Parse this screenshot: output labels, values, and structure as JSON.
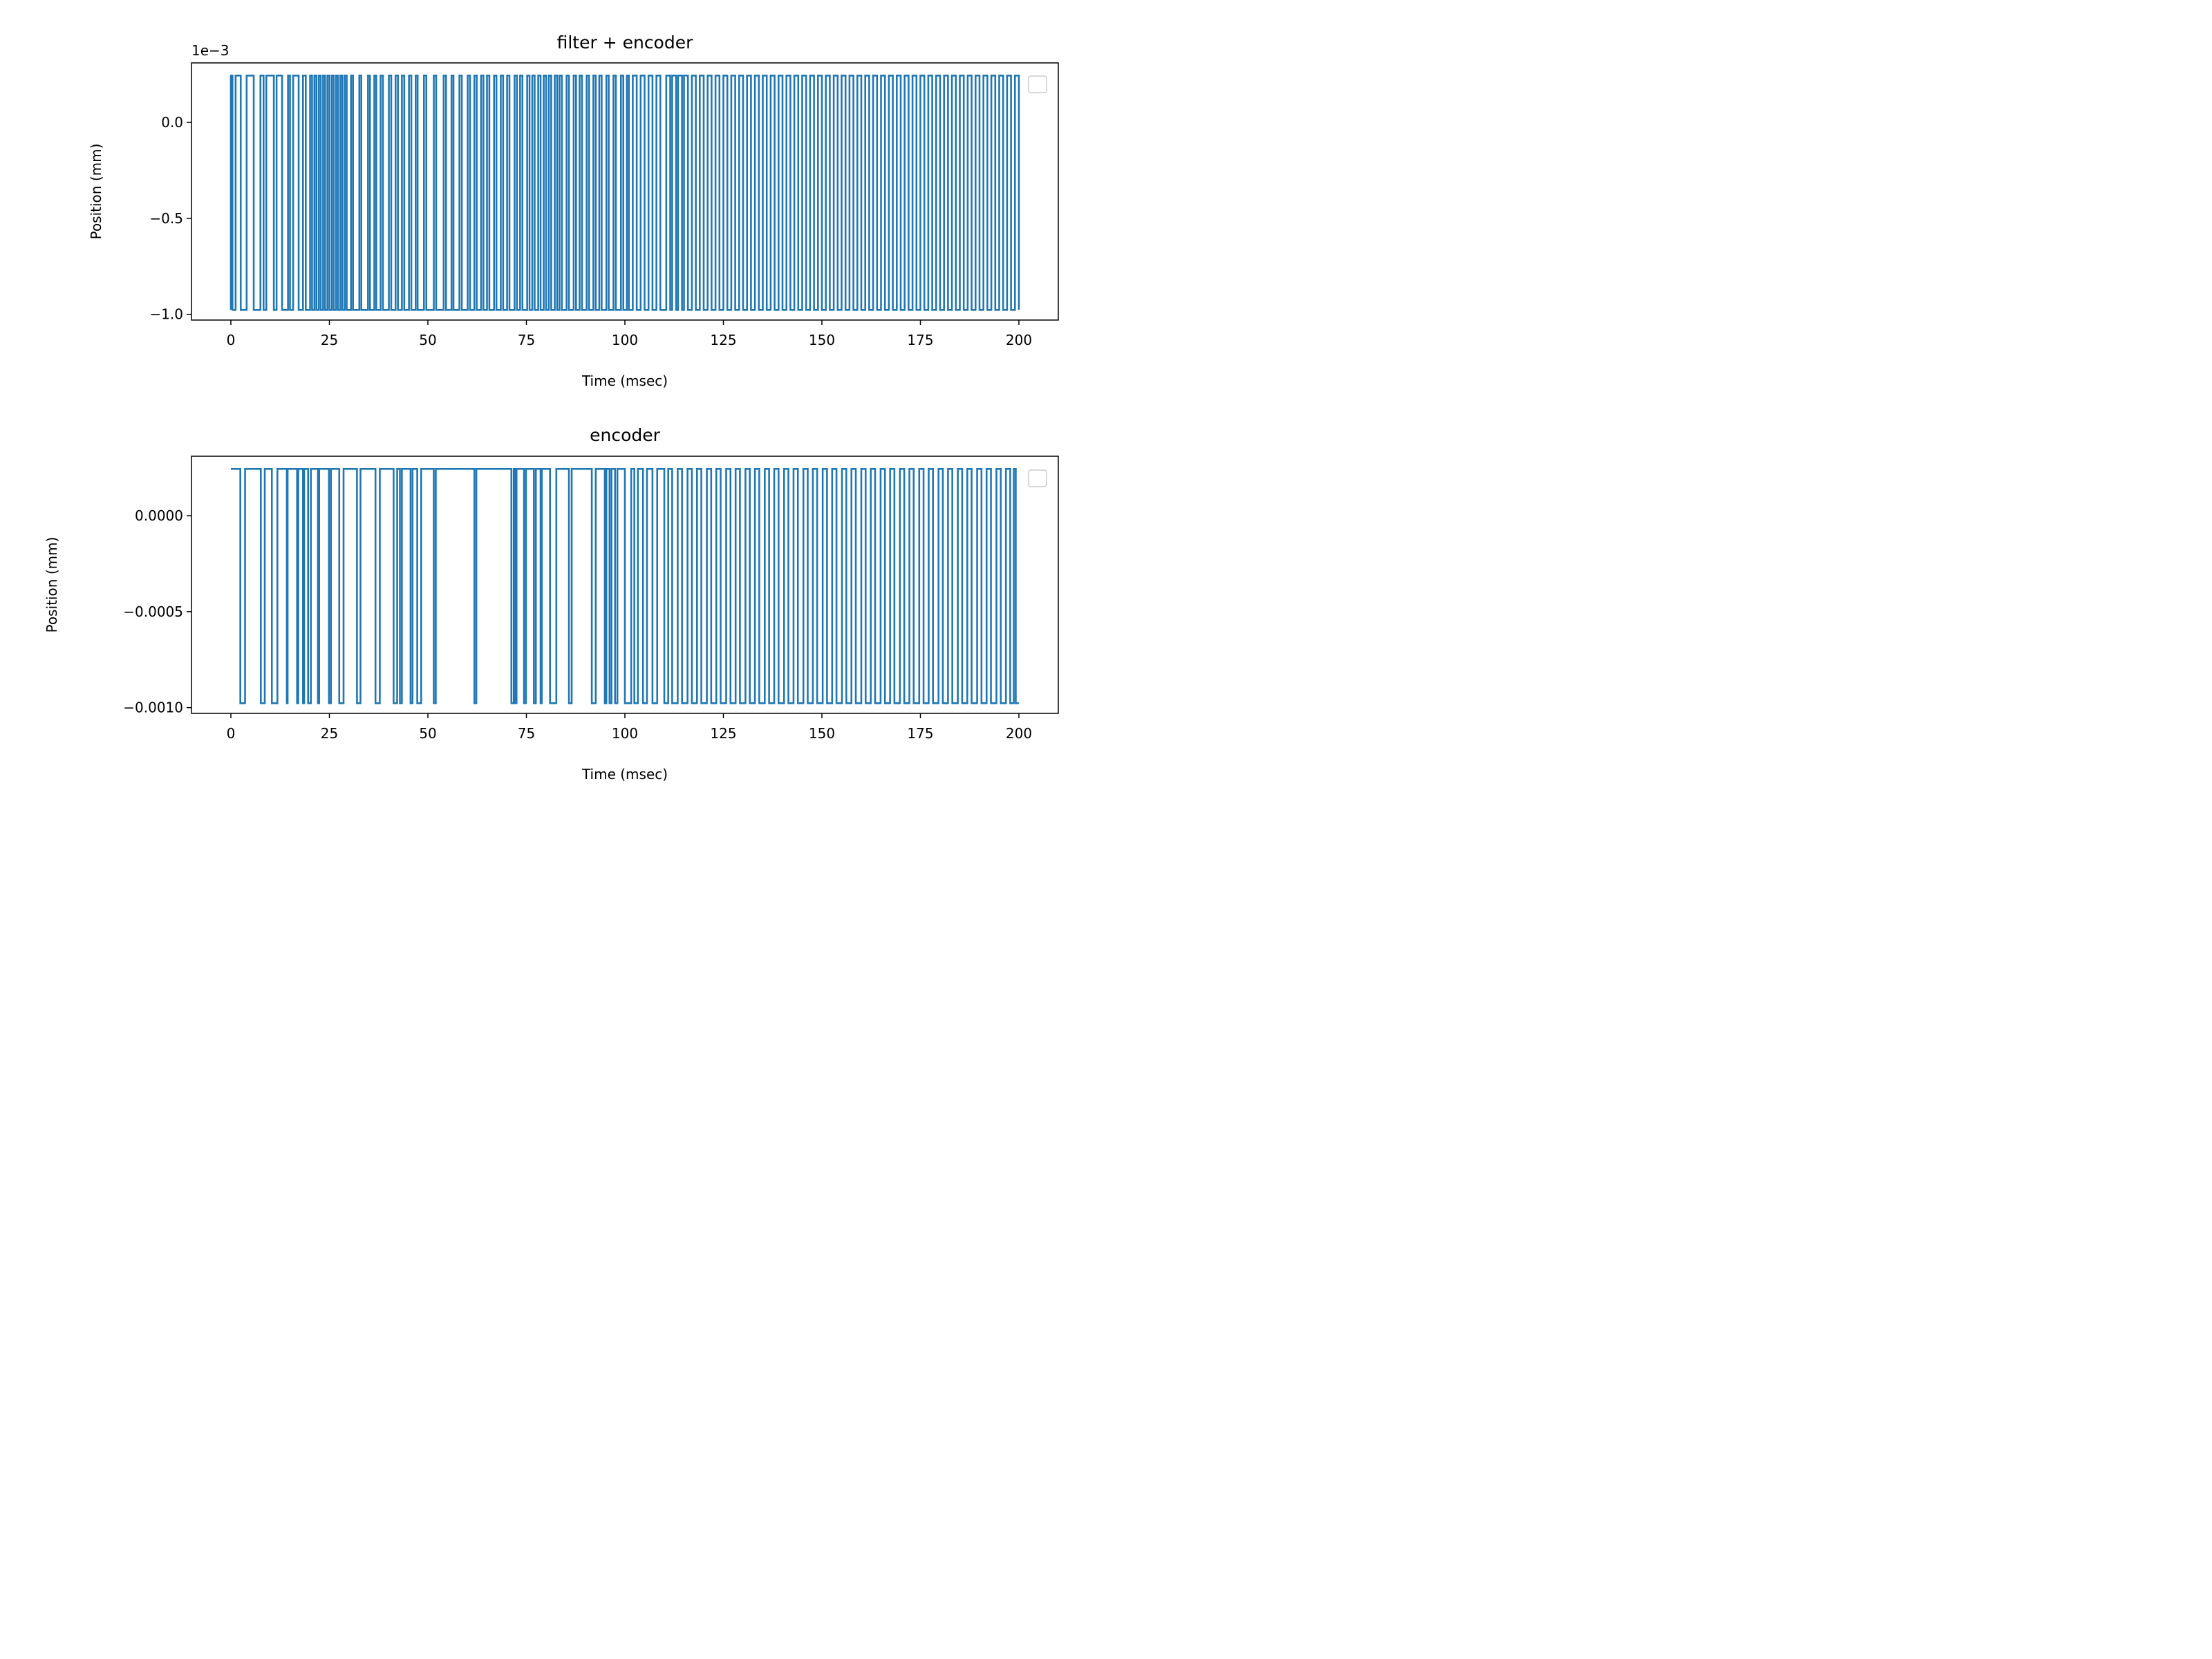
{
  "colors": {
    "series": "#1f77b4",
    "axis": "#000000",
    "legend_border": "#cccccc"
  },
  "chart_data": [
    {
      "type": "line",
      "title": "filter + encoder",
      "xlabel": "Time (msec)",
      "ylabel": "Position (mm)",
      "offset_text": "1e−3",
      "xlim": [
        -10,
        210
      ],
      "ylim": [
        -0.00103,
        0.00031
      ],
      "xticks": [
        0,
        25,
        50,
        75,
        100,
        125,
        150,
        175,
        200
      ],
      "xtick_labels": [
        "0",
        "25",
        "50",
        "75",
        "100",
        "125",
        "150",
        "175",
        "200"
      ],
      "yticks": [
        0.0,
        -0.0005,
        -0.001
      ],
      "ytick_labels": [
        "0.0",
        "−0.5",
        "−1.0"
      ],
      "legend": {
        "position": "top-right",
        "entries": []
      },
      "grid": false,
      "series": [
        {
          "style": "step",
          "levels": [
            0.000244,
            -0.000977
          ],
          "x_range": [
            0,
            200
          ],
          "toggle_x": [
            0.0,
            0.4,
            1.2,
            2.5,
            4.0,
            5.8,
            7.5,
            8.3,
            9.0,
            10.9,
            11.6,
            13.0,
            14.5,
            15.0,
            15.8,
            17.2,
            18.3,
            19.0,
            20.1,
            20.6,
            21.2,
            21.7,
            22.3,
            22.8,
            23.4,
            23.9,
            24.5,
            25.0,
            25.6,
            26.1,
            26.7,
            27.2,
            27.8,
            28.3,
            28.9,
            29.4,
            30.5,
            31.0,
            32.6,
            33.1,
            34.8,
            35.3,
            36.4,
            36.9,
            38.0,
            38.6,
            40.1,
            40.7,
            41.8,
            42.4,
            43.4,
            44.0,
            45.2,
            45.8,
            46.9,
            47.4,
            49.0,
            49.6,
            51.5,
            52.1,
            54.0,
            54.6,
            56.0,
            56.5,
            58.0,
            58.6,
            60.1,
            60.7,
            61.8,
            62.4,
            63.5,
            64.1,
            65.0,
            65.6,
            66.8,
            67.4,
            68.5,
            69.1,
            70.1,
            70.7,
            72.0,
            72.6,
            73.4,
            74.0,
            75.2,
            75.8,
            76.5,
            77.1,
            78.0,
            78.6,
            79.4,
            80.0,
            80.7,
            81.3,
            82.2,
            82.8,
            83.4,
            84.0,
            85.2,
            85.8,
            87.0,
            87.6,
            88.5,
            89.1,
            90.3,
            90.9,
            92.0,
            92.6,
            93.5,
            94.1,
            95.3,
            95.9,
            97.1,
            97.7,
            99.0,
            99.6,
            100.5,
            101.0,
            102.0,
            103.0,
            104.0,
            105.0,
            106.0,
            107.0,
            108.0,
            109.0,
            110.5,
            111.5,
            112.0,
            113.0,
            113.5,
            114.5,
            115.0,
            116.0,
            117.0,
            118.0,
            119.0,
            120.0,
            121.0,
            122.0,
            123.0,
            124.0,
            125.0,
            126.0,
            127.0,
            128.0,
            129.0,
            130.0,
            131.0,
            132.0,
            133.0,
            134.0,
            135.0,
            136.0,
            137.0,
            138.0,
            139.0,
            140.0,
            141.0,
            142.0,
            143.0,
            144.0,
            145.0,
            146.0,
            147.0,
            148.0,
            149.0,
            150.0,
            151.0,
            152.0,
            153.0,
            154.0,
            155.0,
            156.0,
            157.0,
            158.0,
            159.0,
            160.0,
            161.0,
            162.0,
            163.0,
            164.0,
            165.0,
            166.0,
            167.0,
            168.0,
            169.0,
            170.0,
            171.0,
            172.0,
            173.0,
            174.0,
            175.0,
            176.0,
            177.0,
            178.0,
            179.0,
            180.0,
            181.0,
            182.0,
            183.0,
            184.0,
            185.0,
            186.0,
            187.0,
            188.0,
            189.0,
            190.0,
            191.0,
            192.0,
            193.0,
            194.0,
            195.0,
            196.0,
            197.0,
            198.0,
            199.0,
            200.0
          ]
        }
      ]
    },
    {
      "type": "line",
      "title": "encoder",
      "xlabel": "Time (msec)",
      "ylabel": "Position (mm)",
      "offset_text": "",
      "xlim": [
        -10,
        210
      ],
      "ylim": [
        -0.00103,
        0.00031
      ],
      "xticks": [
        0,
        25,
        50,
        75,
        100,
        125,
        150,
        175,
        200
      ],
      "xtick_labels": [
        "0",
        "25",
        "50",
        "75",
        "100",
        "125",
        "150",
        "175",
        "200"
      ],
      "yticks": [
        0.0,
        -0.0005,
        -0.001
      ],
      "ytick_labels": [
        "0.0000",
        "−0.0005",
        "−0.0010"
      ],
      "legend": {
        "position": "top-right",
        "entries": []
      },
      "grid": false,
      "series": [
        {
          "style": "step",
          "levels": [
            0.000244,
            -0.000977
          ],
          "x_range": [
            0,
            200
          ],
          "toggle_x": [
            2.4,
            3.6,
            7.6,
            8.6,
            10.4,
            11.8,
            14.2,
            14.4,
            16.8,
            17.1,
            18.3,
            18.6,
            19.6,
            20.3,
            22.1,
            22.4,
            24.9,
            25.4,
            27.5,
            28.6,
            32.0,
            32.9,
            36.7,
            37.8,
            41.3,
            42.2,
            42.9,
            43.4,
            45.6,
            46.1,
            47.3,
            48.3,
            51.5,
            52.0,
            61.8,
            62.3,
            71.2,
            71.8,
            72.1,
            72.5,
            74.4,
            74.9,
            76.9,
            77.4,
            78.6,
            78.9,
            81.0,
            82.6,
            85.8,
            86.5,
            91.6,
            92.6,
            94.9,
            95.3,
            96.1,
            96.6,
            97.5,
            98.1,
            100.0,
            101.6,
            102.4,
            103.3,
            104.6,
            105.6,
            107.0,
            108.2,
            110.0,
            111.0,
            112.0,
            113.4,
            114.5,
            115.9,
            117.0,
            118.3,
            119.4,
            120.8,
            121.9,
            123.2,
            124.3,
            125.7,
            126.8,
            128.1,
            129.2,
            130.6,
            131.7,
            133.0,
            134.1,
            135.5,
            136.6,
            137.9,
            139.0,
            140.4,
            141.5,
            142.8,
            143.9,
            145.3,
            146.4,
            147.7,
            148.8,
            150.2,
            151.3,
            152.6,
            153.7,
            155.1,
            156.2,
            157.5,
            158.6,
            160.0,
            161.1,
            162.4,
            163.5,
            164.9,
            166.0,
            167.3,
            168.4,
            169.8,
            170.9,
            172.2,
            173.3,
            174.7,
            175.8,
            177.1,
            178.2,
            179.6,
            180.7,
            182.0,
            183.1,
            184.5,
            185.6,
            186.9,
            188.0,
            189.4,
            190.5,
            191.8,
            192.9,
            194.3,
            195.4,
            196.7,
            197.8,
            198.7,
            199.2
          ]
        }
      ]
    }
  ]
}
